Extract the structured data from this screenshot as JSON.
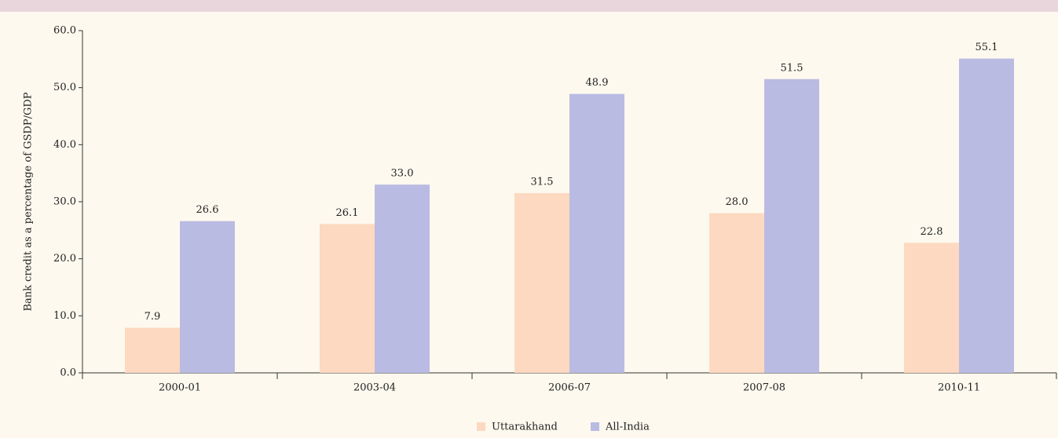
{
  "chart_data": {
    "type": "bar",
    "y_label": "Bank credit as a percentage of GSDP/GDP",
    "categories": [
      "2000-01",
      "2003-04",
      "2006-07",
      "2007-08",
      "2010-11"
    ],
    "series": [
      {
        "name": "Uttarakhand",
        "color": "#fcd9c0",
        "values": [
          7.9,
          26.1,
          31.5,
          28.0,
          22.8
        ],
        "value_labels": [
          "7.9",
          "26.1",
          "31.5",
          "28.0",
          "22.8"
        ]
      },
      {
        "name": "All-India",
        "color": "#babbe3",
        "values": [
          26.6,
          33.0,
          48.9,
          51.5,
          55.1
        ],
        "value_labels": [
          "26.6",
          "33.0",
          "48.9",
          "51.5",
          "55.1"
        ]
      }
    ],
    "ylim": [
      0,
      60
    ],
    "yticks": [
      {
        "value": 0,
        "label": "0.0"
      },
      {
        "value": 10,
        "label": "10.0"
      },
      {
        "value": 20,
        "label": "20.0"
      },
      {
        "value": 30,
        "label": "30.0"
      },
      {
        "value": 40,
        "label": "40.0"
      },
      {
        "value": 50,
        "label": "50.0"
      },
      {
        "value": 60,
        "label": "60.0"
      }
    ],
    "legend": "bottom"
  }
}
